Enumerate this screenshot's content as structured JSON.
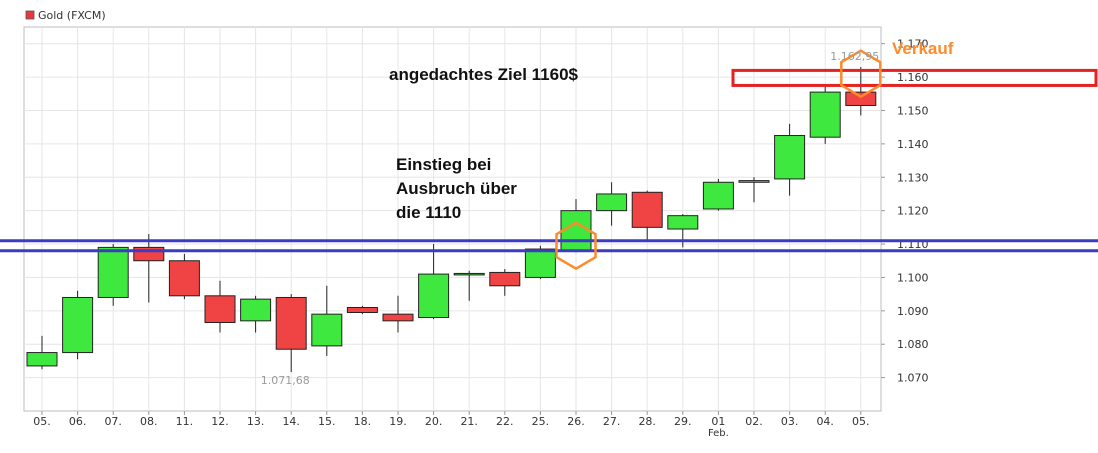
{
  "chart_data": {
    "type": "candlestick",
    "legend": {
      "label": "Gold (FXCM)",
      "color": "#e8383d"
    },
    "colors": {
      "up": "#3fe83f",
      "down": "#f04343",
      "grid": "#e6e6e6",
      "support": "#3b3bc4",
      "target": "#e52222",
      "marker": "#ff8a2a"
    },
    "ylim": [
      1060,
      1175
    ],
    "y_ticks": [
      1070,
      1080,
      1090,
      1100,
      1110,
      1120,
      1130,
      1140,
      1150,
      1160,
      1170
    ],
    "y_tick_labels": [
      "1.070",
      "1.080",
      "1.090",
      "1.100",
      "1.110",
      "1.120",
      "1.130",
      "1.140",
      "1.150",
      "1.160",
      "1.170"
    ],
    "x_labels": [
      "05.",
      "06.",
      "07.",
      "08.",
      "11.",
      "12.",
      "13.",
      "14.",
      "15.",
      "18.",
      "19.",
      "20.",
      "21.",
      "22.",
      "25.",
      "26.",
      "27.",
      "28.",
      "29.",
      "01",
      "02.",
      "03.",
      "04.",
      "05."
    ],
    "x_sublabel": {
      "index": 19,
      "text": "Feb."
    },
    "candles": [
      {
        "o": 1073.5,
        "h": 1082.5,
        "l": 1072.5,
        "c": 1077.5
      },
      {
        "o": 1077.5,
        "h": 1096.0,
        "l": 1075.5,
        "c": 1094.0
      },
      {
        "o": 1094.0,
        "h": 1110.0,
        "l": 1091.5,
        "c": 1109.0
      },
      {
        "o": 1109.0,
        "h": 1113.0,
        "l": 1092.5,
        "c": 1105.0
      },
      {
        "o": 1105.0,
        "h": 1107.0,
        "l": 1093.5,
        "c": 1094.5
      },
      {
        "o": 1094.5,
        "h": 1099.0,
        "l": 1083.5,
        "c": 1086.5
      },
      {
        "o": 1087.0,
        "h": 1094.5,
        "l": 1083.5,
        "c": 1093.5
      },
      {
        "o": 1094.0,
        "h": 1095.0,
        "l": 1071.7,
        "c": 1078.5
      },
      {
        "o": 1079.5,
        "h": 1097.5,
        "l": 1076.5,
        "c": 1089.0
      },
      {
        "o": 1091.0,
        "h": 1091.5,
        "l": 1089.0,
        "c": 1089.5
      },
      {
        "o": 1089.0,
        "h": 1094.5,
        "l": 1083.5,
        "c": 1087.0
      },
      {
        "o": 1088.0,
        "h": 1110.0,
        "l": 1087.5,
        "c": 1101.0
      },
      {
        "o": 1101.0,
        "h": 1102.0,
        "l": 1093.0,
        "c": 1101.2
      },
      {
        "o": 1101.5,
        "h": 1102.5,
        "l": 1094.5,
        "c": 1097.5
      },
      {
        "o": 1100.0,
        "h": 1109.5,
        "l": 1099.5,
        "c": 1108.5
      },
      {
        "o": 1108.0,
        "h": 1123.5,
        "l": 1107.5,
        "c": 1120.0
      },
      {
        "o": 1120.0,
        "h": 1128.5,
        "l": 1115.5,
        "c": 1125.0
      },
      {
        "o": 1125.5,
        "h": 1126.0,
        "l": 1111.0,
        "c": 1115.0
      },
      {
        "o": 1114.5,
        "h": 1119.0,
        "l": 1109.0,
        "c": 1118.5
      },
      {
        "o": 1120.5,
        "h": 1129.5,
        "l": 1120.0,
        "c": 1128.5
      },
      {
        "o": 1128.5,
        "h": 1130.0,
        "l": 1122.5,
        "c": 1129.0
      },
      {
        "o": 1129.5,
        "h": 1146.0,
        "l": 1124.5,
        "c": 1142.5
      },
      {
        "o": 1142.0,
        "h": 1157.5,
        "l": 1140.0,
        "c": 1155.5
      },
      {
        "o": 1155.5,
        "h": 1163.0,
        "l": 1148.5,
        "c": 1151.5
      }
    ],
    "price_labels": [
      {
        "index": 7,
        "value": 1071.68,
        "text": "1.071,68",
        "position": "below"
      },
      {
        "index": 23,
        "value": 1162.95,
        "text": "1.162,95",
        "position": "above"
      }
    ],
    "support_lines": [
      1111,
      1108
    ],
    "target_zone": {
      "from_index": 20,
      "low": 1157.5,
      "high": 1162.0
    },
    "markers": [
      {
        "index": 15,
        "value": 1109.5
      },
      {
        "index": 23,
        "value": 1161.0
      }
    ],
    "annotations": {
      "target": "angedachtes Ziel 1160$",
      "entry_lines": [
        "Einstieg bei",
        "Ausbruch über",
        "die 1110"
      ],
      "sell": "Verkauf"
    }
  }
}
